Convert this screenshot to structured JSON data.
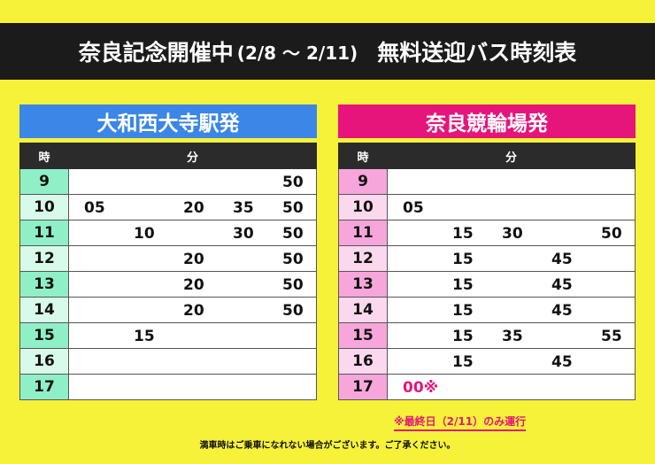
{
  "banner": {
    "title_main": "奈良記念開催中",
    "title_dates": "(2/8 ～ 2/11)",
    "title_sub": "無料送迎バス時刻表"
  },
  "header_labels": {
    "hour": "時",
    "minute": "分"
  },
  "left": {
    "title": "大和西大寺駅発",
    "rows": [
      {
        "hour": "9",
        "mins": [
          "",
          "",
          "",
          "",
          "50"
        ]
      },
      {
        "hour": "10",
        "mins": [
          "05",
          "",
          "20",
          "35",
          "50"
        ]
      },
      {
        "hour": "11",
        "mins": [
          "",
          "10",
          "",
          "30",
          "50"
        ]
      },
      {
        "hour": "12",
        "mins": [
          "",
          "",
          "20",
          "",
          "50"
        ]
      },
      {
        "hour": "13",
        "mins": [
          "",
          "",
          "20",
          "",
          "50"
        ]
      },
      {
        "hour": "14",
        "mins": [
          "",
          "",
          "20",
          "",
          "50"
        ]
      },
      {
        "hour": "15",
        "mins": [
          "",
          "15",
          "",
          "",
          ""
        ]
      },
      {
        "hour": "16",
        "mins": [
          "",
          "",
          "",
          "",
          ""
        ]
      },
      {
        "hour": "17",
        "mins": [
          "",
          "",
          "",
          "",
          ""
        ]
      }
    ]
  },
  "right": {
    "title": "奈良競輪場発",
    "rows": [
      {
        "hour": "9",
        "mins": [
          "",
          "",
          "",
          "",
          ""
        ]
      },
      {
        "hour": "10",
        "mins": [
          "05",
          "",
          "",
          "",
          ""
        ]
      },
      {
        "hour": "11",
        "mins": [
          "",
          "15",
          "30",
          "",
          "50"
        ]
      },
      {
        "hour": "12",
        "mins": [
          "",
          "15",
          "",
          "45",
          ""
        ]
      },
      {
        "hour": "13",
        "mins": [
          "",
          "15",
          "",
          "45",
          ""
        ]
      },
      {
        "hour": "14",
        "mins": [
          "",
          "15",
          "",
          "45",
          ""
        ]
      },
      {
        "hour": "15",
        "mins": [
          "",
          "15",
          "35",
          "",
          "55"
        ]
      },
      {
        "hour": "16",
        "mins": [
          "",
          "15",
          "",
          "45",
          ""
        ]
      },
      {
        "hour": "17",
        "mins": [
          "00",
          "",
          "",
          "",
          ""
        ]
      }
    ],
    "special_mark": "※"
  },
  "notes": {
    "last_day": "※最終日（2/11）のみ運行",
    "footer": "満車時はご乗車になれない場合がございます。ご了承ください。"
  },
  "colors": {
    "background": "#f6f23a",
    "banner": "#1b1b1b",
    "left_accent": "#3b86e6",
    "right_accent": "#e5157b"
  }
}
